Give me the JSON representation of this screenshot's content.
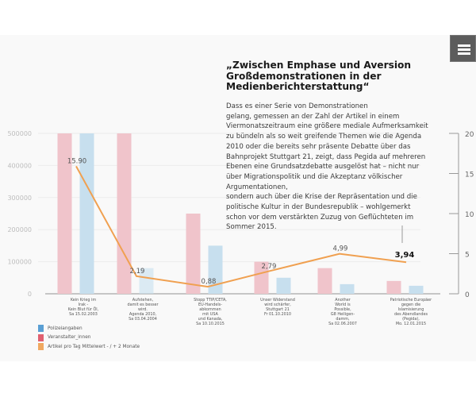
{
  "menu": {
    "icon": "hamburger-menu-icon"
  },
  "article": {
    "headline": "„Zwischen Emphase und Aversion\nGroßdemonstrationen in der\nMedienberichterstattung“",
    "body_lines": [
      "Dass es einer Serie von Demonstrationen",
      "gelang, gemessen an der Zahl der Artikel in einem",
      "Viermonatszeitraum eine größere mediale Aufmerksamkeit",
      "zu bündeln als so weit greifende Themen wie die Agenda",
      "2010 oder die bereits sehr präsente Debatte über das",
      "Bahnprojekt Stuttgart 21, zeigt, dass Pegida auf mehreren",
      "Ebenen eine Grundsatzdebatte ausgelöst hat – nicht nur",
      "über Migrationspolitik und die Akzeptanz völkischer",
      "Argumentationen,",
      "sondern auch über die Krise der Repräsentation und die",
      "politische Kultur in der Bundesrepublik – wohlgemerkt",
      "schon vor dem verstärkten Zuzug von Geflüchteten im",
      "Sommer 2015."
    ]
  },
  "chart_data": {
    "type": "bar",
    "title": "„Zwischen Emphase und Aversion Großdemonstrationen in der Medienberichterstattung“",
    "xlabel": "",
    "ylabel": "",
    "ylim": [
      0,
      500000
    ],
    "y2lim": [
      0,
      20
    ],
    "yticks": [
      "0",
      "100000",
      "200000",
      "300000",
      "400000",
      "500000"
    ],
    "y2ticks": [
      "0",
      "5",
      "10",
      "15",
      "20"
    ],
    "grid": true,
    "legend_position": "bottom-left",
    "categories": [
      "Kein Krieg im\nIrak -\nKein Blut für Öl,\nSa 15.02.2003",
      "Aufstehen,\ndamit es besser\nwird.\nAgenda 2010,\nSa 03.04.2004",
      "Stopp TTIP/CETA,\nEU-Handels-\nabkommen\nmit USA\nund Kanada,\nSa 10.10.2015",
      "Unser Widerstand\nwird schärfer,\nStuttgart 21\nFr 01.10.2010",
      "Another\nWorld is\nPossible,\nG8 Heiligen-\ndamm,\nSa 02.06.2007",
      "Patriotische Europäer\ngegen die\nIslamisierung\ndes Abendlandes\n(Pegida),\nMo. 12.01.2015"
    ],
    "series": [
      {
        "name": "Veranstalter_innen",
        "type": "bar",
        "axis": "left",
        "color": "#f0c4cb",
        "values": [
          500000,
          500000,
          250000,
          100000,
          80000,
          40000
        ]
      },
      {
        "name": "Polizeiangaben",
        "type": "bar",
        "axis": "left",
        "color": "#c7dfee",
        "values": [
          500000,
          80000,
          150000,
          50000,
          30000,
          25000
        ]
      },
      {
        "name": "Artikel pro Tag Mittelwert - / + 2 Monate",
        "type": "line",
        "axis": "right",
        "color": "#f0a050",
        "values": [
          15.9,
          2.19,
          0.88,
          2.79,
          4.99,
          3.94
        ],
        "labels": [
          "15.90",
          "2,19",
          "0,88",
          "2,79",
          "4,99",
          "3,94"
        ],
        "highlight_index": 5
      }
    ],
    "legend": [
      {
        "label": "Polizeiangaben",
        "color": "#5a9fd4"
      },
      {
        "label": "Veranstalter_innen",
        "color": "#e06070"
      },
      {
        "label": "Artikel pro Tag Mittelwert - / + 2 Monate",
        "color": "#f0a860"
      }
    ]
  }
}
